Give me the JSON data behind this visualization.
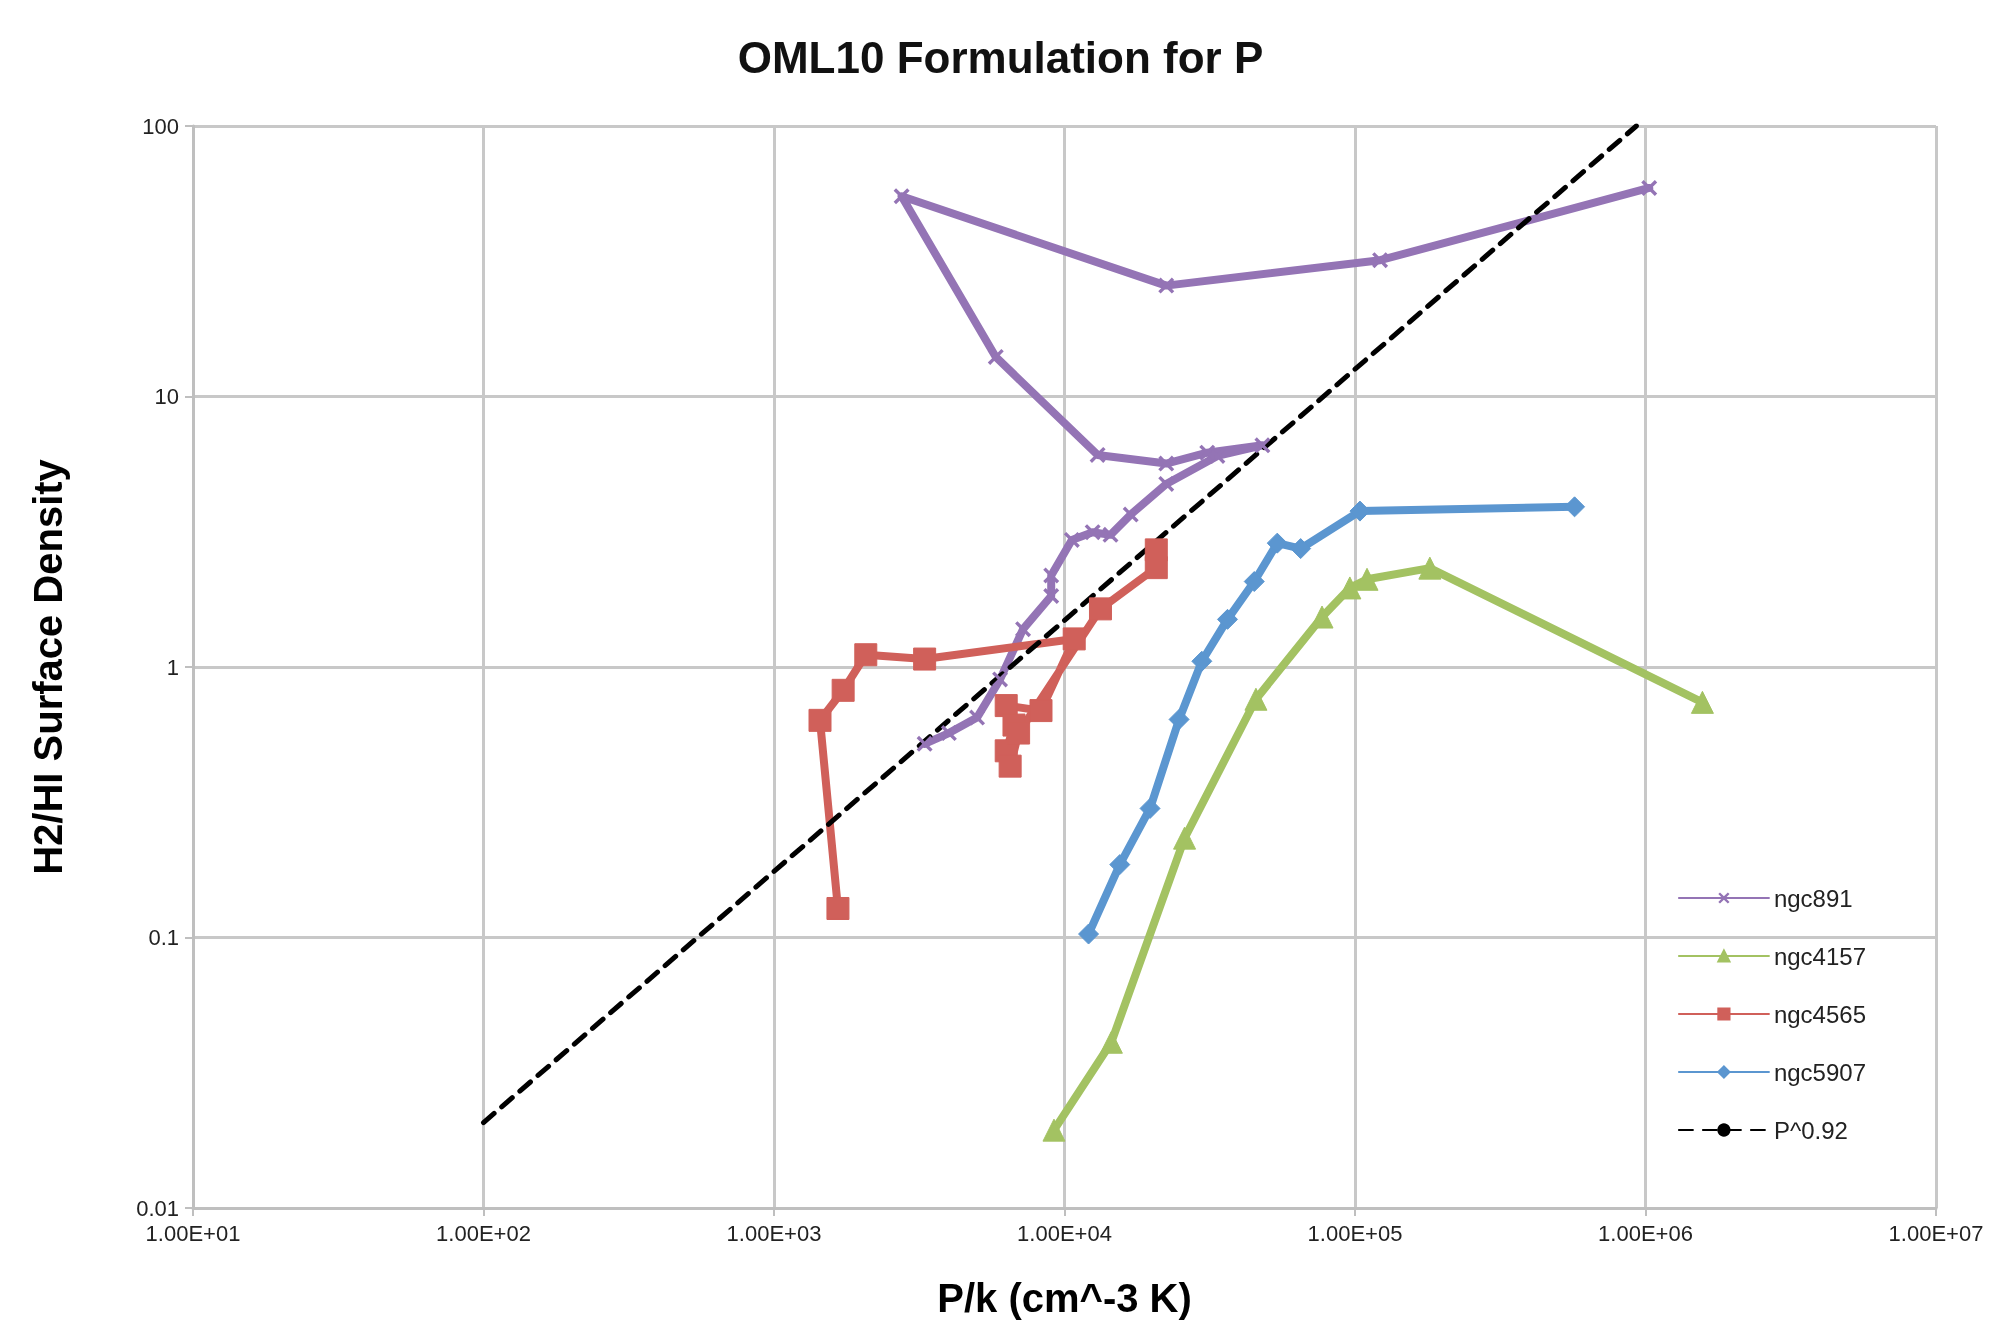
{
  "chart_data": {
    "type": "line",
    "title": "OML10 Formulation for P",
    "xlabel": "P/k (cm^-3 K)",
    "ylabel": "H2/HI Surface Density",
    "log": "xy",
    "grid": true,
    "legend": "bottom right",
    "xlim": [
      10,
      10000000
    ],
    "xticks": [
      {
        "value": 10,
        "label": "1.00E+01"
      },
      {
        "value": 100,
        "label": "1.00E+02"
      },
      {
        "value": 1000,
        "label": "1.00E+03"
      },
      {
        "value": 10000,
        "label": "1.00E+04"
      },
      {
        "value": 100000,
        "label": "1.00E+05"
      },
      {
        "value": 1000000,
        "label": "1.00E+06"
      },
      {
        "value": 10000000,
        "label": "1.00E+07"
      }
    ],
    "ylim": [
      0.01,
      100
    ],
    "yticks": [
      0.01,
      0.1,
      1,
      10,
      100
    ],
    "series": [
      {
        "name": "ngc891",
        "color": "#9474b5",
        "marker": "cross",
        "x": [
          3300,
          4000,
          5000,
          6000,
          7200,
          9000,
          9000,
          10600,
          12500,
          14400,
          16900,
          22400,
          33600,
          48000,
          31000,
          22400,
          13000,
          5800,
          2750,
          22400,
          122000,
          1030000
        ],
        "values": [
          0.52,
          0.57,
          0.65,
          0.9,
          1.38,
          1.83,
          2.18,
          2.95,
          3.15,
          3.08,
          3.66,
          4.75,
          6.03,
          6.6,
          6.2,
          5.65,
          6.08,
          14,
          55,
          25.7,
          31.9,
          59
        ]
      },
      {
        "name": "ngc4157",
        "color": "#a3c262",
        "marker": "triangle",
        "x": [
          9200,
          14500,
          25900,
          45600,
          77000,
          96000,
          110000,
          181000,
          1570000
        ],
        "values": [
          0.0194,
          0.041,
          0.233,
          0.76,
          1.53,
          1.96,
          2.11,
          2.32,
          0.74
        ]
      },
      {
        "name": "ngc4565",
        "color": "#d0605a",
        "marker": "square",
        "x": [
          1660,
          1440,
          1730,
          2070,
          3300,
          10800,
          8300,
          6300,
          6700,
          6300,
          6500,
          6950,
          13300,
          20700,
          20700
        ],
        "values": [
          0.128,
          0.635,
          0.82,
          1.11,
          1.07,
          1.27,
          0.69,
          0.72,
          0.61,
          0.49,
          0.43,
          0.57,
          1.64,
          2.33,
          2.71
        ]
      },
      {
        "name": "ngc5907",
        "color": "#5b96d0",
        "marker": "diamond",
        "x": [
          12100,
          15500,
          19700,
          24800,
          29700,
          36400,
          45000,
          54000,
          65000,
          104000,
          570000
        ],
        "values": [
          0.103,
          0.186,
          0.3,
          0.64,
          1.05,
          1.5,
          2.07,
          2.87,
          2.74,
          3.77,
          3.91
        ]
      },
      {
        "name": "P^0.92",
        "color": "#000000",
        "marker": "none",
        "line_style": "dashed",
        "x": [
          100,
          930000
        ],
        "values": [
          0.0207,
          100
        ]
      }
    ]
  }
}
